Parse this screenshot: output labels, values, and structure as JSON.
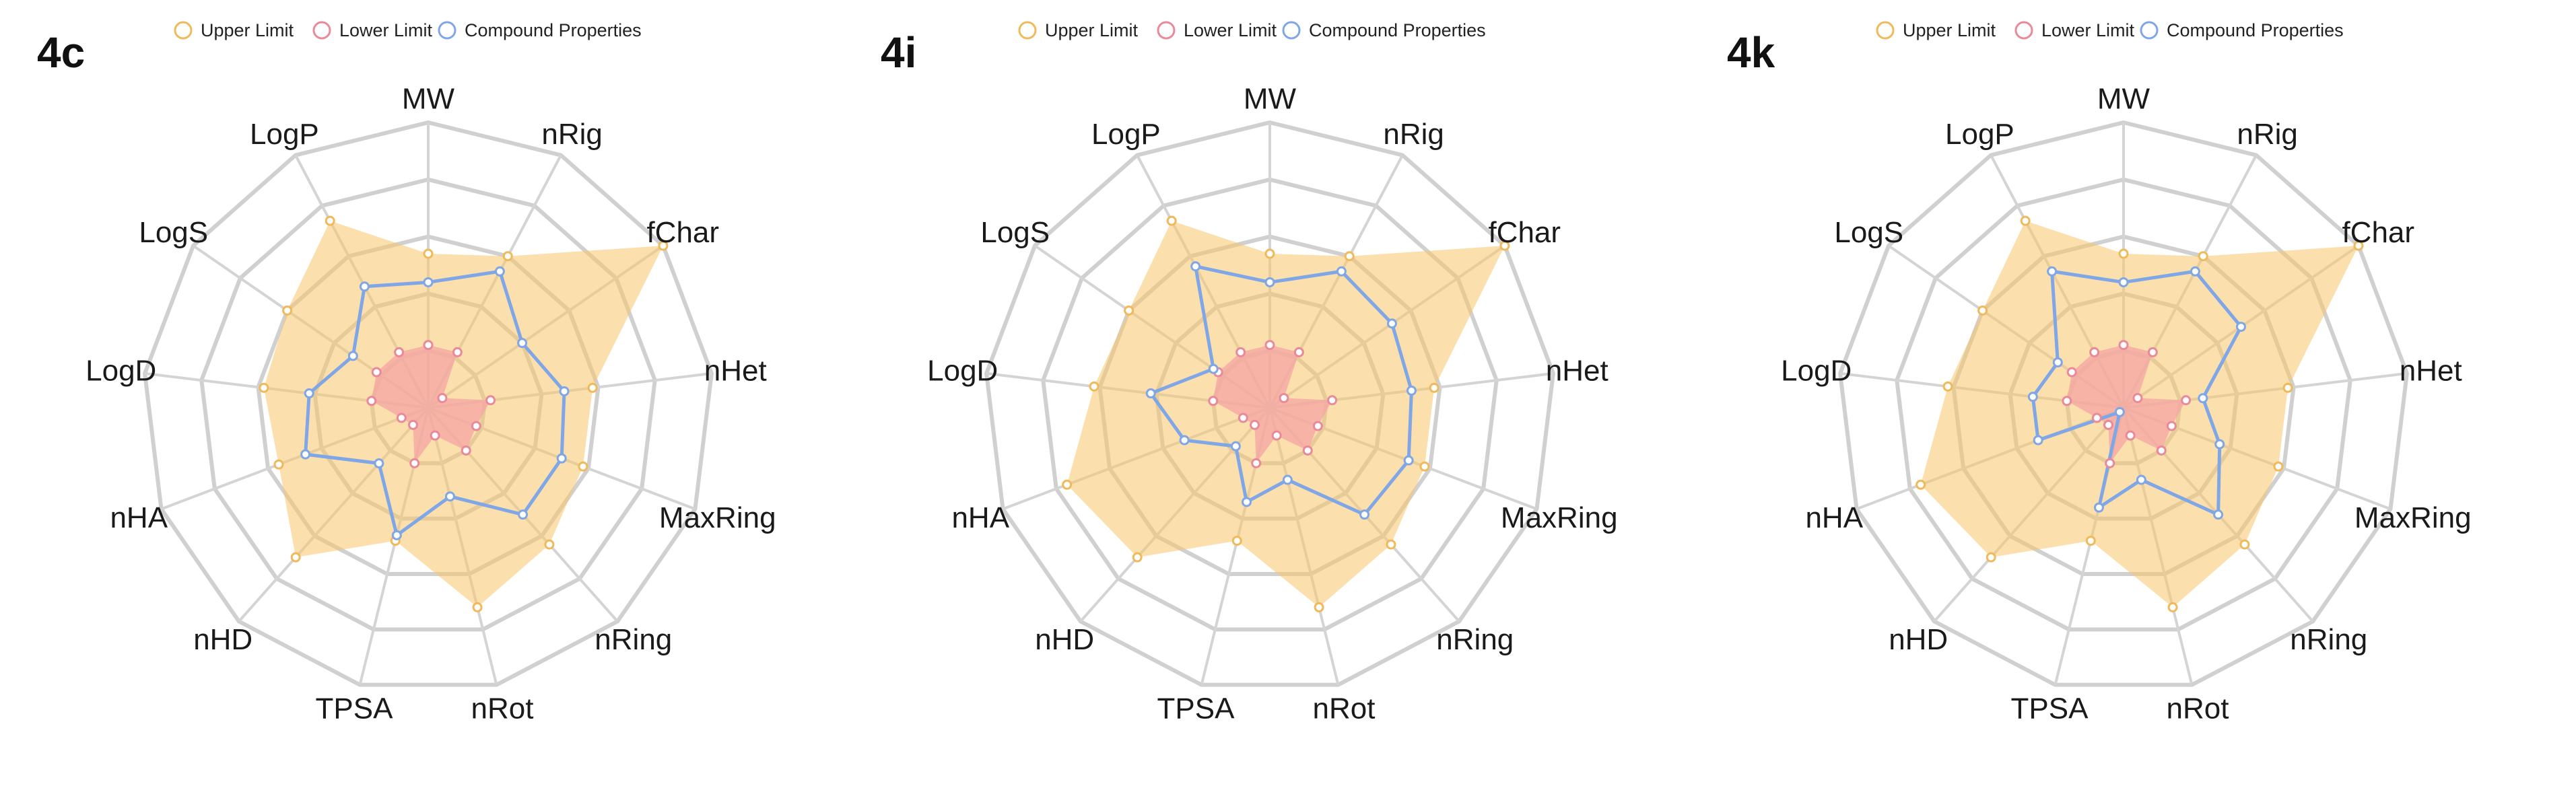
{
  "legend": {
    "upper": "Upper Limit",
    "lower": "Lower Limit",
    "compound": "Compound Properties"
  },
  "colors": {
    "upper_fill": "#f7c46a",
    "upper_point": "#f0b95a",
    "lower_fill": "#f4a4a4",
    "lower_point": "#e9899a",
    "compound_line": "#7fa6e6",
    "grid": "#d0d0d0"
  },
  "chart_data": [
    {
      "type": "radar",
      "panel": "4c",
      "axes": [
        "MW",
        "nRig",
        "fChar",
        "nHet",
        "MaxRing",
        "nRing",
        "nRot",
        "TPSA",
        "nHD",
        "nHA",
        "LogD",
        "LogS",
        "LogP"
      ],
      "rlim": [
        0,
        5
      ],
      "grid": true,
      "series": [
        {
          "name": "Upper Limit",
          "values": [
            2.7,
            3.0,
            5.0,
            2.9,
            2.9,
            3.2,
            3.6,
            2.4,
            3.5,
            2.8,
            2.9,
            3.0,
            3.7
          ]
        },
        {
          "name": "Lower Limit",
          "values": [
            1.1,
            1.1,
            0.3,
            1.1,
            0.9,
            1.0,
            0.5,
            1.0,
            0.4,
            0.5,
            1.0,
            1.1,
            1.1
          ]
        },
        {
          "name": "Compound Properties",
          "values": [
            2.2,
            2.7,
            2.0,
            2.4,
            2.5,
            2.5,
            1.6,
            2.3,
            1.3,
            2.3,
            2.1,
            1.6,
            2.4
          ]
        }
      ]
    },
    {
      "type": "radar",
      "panel": "4i",
      "axes": [
        "MW",
        "nRig",
        "fChar",
        "nHet",
        "MaxRing",
        "nRing",
        "nRot",
        "TPSA",
        "nHD",
        "nHA",
        "LogD",
        "LogS",
        "LogP"
      ],
      "rlim": [
        0,
        5
      ],
      "grid": true,
      "series": [
        {
          "name": "Upper Limit",
          "values": [
            2.7,
            3.0,
            5.0,
            2.9,
            2.9,
            3.2,
            3.6,
            2.4,
            3.5,
            3.8,
            3.1,
            3.0,
            3.7
          ]
        },
        {
          "name": "Lower Limit",
          "values": [
            1.1,
            1.1,
            0.3,
            1.1,
            0.9,
            1.0,
            0.5,
            1.0,
            0.4,
            0.5,
            1.0,
            1.1,
            1.1
          ]
        },
        {
          "name": "Compound Properties",
          "values": [
            2.2,
            2.7,
            2.6,
            2.5,
            2.6,
            2.5,
            1.3,
            1.7,
            0.9,
            1.6,
            2.1,
            1.2,
            2.8
          ]
        }
      ]
    },
    {
      "type": "radar",
      "panel": "4k",
      "axes": [
        "MW",
        "nRig",
        "fChar",
        "nHet",
        "MaxRing",
        "nRing",
        "nRot",
        "TPSA",
        "nHD",
        "nHA",
        "LogD",
        "LogS",
        "LogP"
      ],
      "rlim": [
        0,
        5
      ],
      "grid": true,
      "series": [
        {
          "name": "Upper Limit",
          "values": [
            2.7,
            3.0,
            5.0,
            2.9,
            2.9,
            3.2,
            3.6,
            2.4,
            3.5,
            3.8,
            3.1,
            3.0,
            3.7
          ]
        },
        {
          "name": "Lower Limit",
          "values": [
            1.1,
            1.1,
            0.3,
            1.1,
            0.9,
            1.0,
            0.5,
            1.0,
            0.4,
            0.5,
            1.0,
            1.1,
            1.1
          ]
        },
        {
          "name": "Compound Properties",
          "values": [
            2.2,
            2.7,
            2.5,
            1.4,
            1.8,
            2.5,
            1.3,
            1.8,
            0.1,
            1.6,
            1.6,
            1.4,
            2.7
          ]
        }
      ]
    }
  ],
  "panels": [
    {
      "label": "4c"
    },
    {
      "label": "4i"
    },
    {
      "label": "4k"
    }
  ]
}
